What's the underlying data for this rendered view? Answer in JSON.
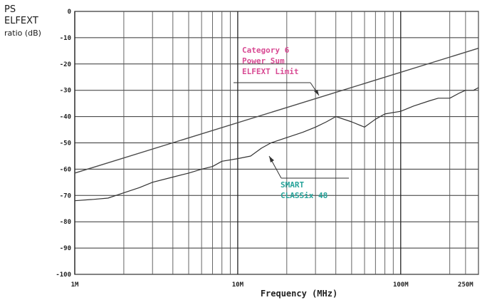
{
  "chart_data": {
    "type": "line",
    "title": "",
    "ylabel_lines": [
      "PS",
      "ELFEXT",
      "ratio (dB)"
    ],
    "xlabel": "Frequency (MHz)",
    "x_scale": "log",
    "xlim": [
      1,
      300
    ],
    "ylim": [
      -100,
      0
    ],
    "grid": true,
    "y_ticks": [
      0,
      -10,
      -20,
      -30,
      -40,
      -50,
      -60,
      -70,
      -80,
      -90,
      -100
    ],
    "x_ticks": [
      {
        "value": 1,
        "label": "1M"
      },
      {
        "value": 10,
        "label": "10M"
      },
      {
        "value": 100,
        "label": "100M"
      },
      {
        "value": 250,
        "label": "250M"
      }
    ],
    "series": [
      {
        "name": "Category 6 Power Sum ELFEXT Limit",
        "color": "#4a4a4a",
        "x": [
          1,
          300
        ],
        "y": [
          -61.5,
          -14
        ]
      },
      {
        "name": "SMART CLASSix 48",
        "color": "#333333",
        "x": [
          1,
          1.3,
          1.6,
          2,
          2.5,
          3,
          4,
          5,
          6,
          7,
          8,
          10,
          12,
          14,
          16,
          20,
          25,
          30,
          35,
          40,
          50,
          60,
          70,
          80,
          100,
          120,
          150,
          170,
          200,
          230,
          250,
          280,
          300
        ],
        "y": [
          -72,
          -71.5,
          -71,
          -69,
          -67,
          -65,
          -63,
          -61.5,
          -60,
          -59,
          -57,
          -56,
          -55,
          -52,
          -50,
          -48,
          -46,
          -44,
          -42,
          -40,
          -42,
          -44,
          -41,
          -39,
          -38,
          -36,
          -34,
          -33,
          -33,
          -31,
          -30,
          -30,
          -29
        ]
      }
    ],
    "annotations": [
      {
        "lines": [
          "Category 6",
          "Power Sum",
          "ELFEXT Limit"
        ],
        "color": "#d84a93",
        "points_to": "Category 6 Power Sum ELFEXT Limit"
      },
      {
        "lines": [
          "SMART",
          "CLASSix 48"
        ],
        "color": "#27a39a",
        "points_to": "SMART CLASSix 48"
      }
    ]
  }
}
